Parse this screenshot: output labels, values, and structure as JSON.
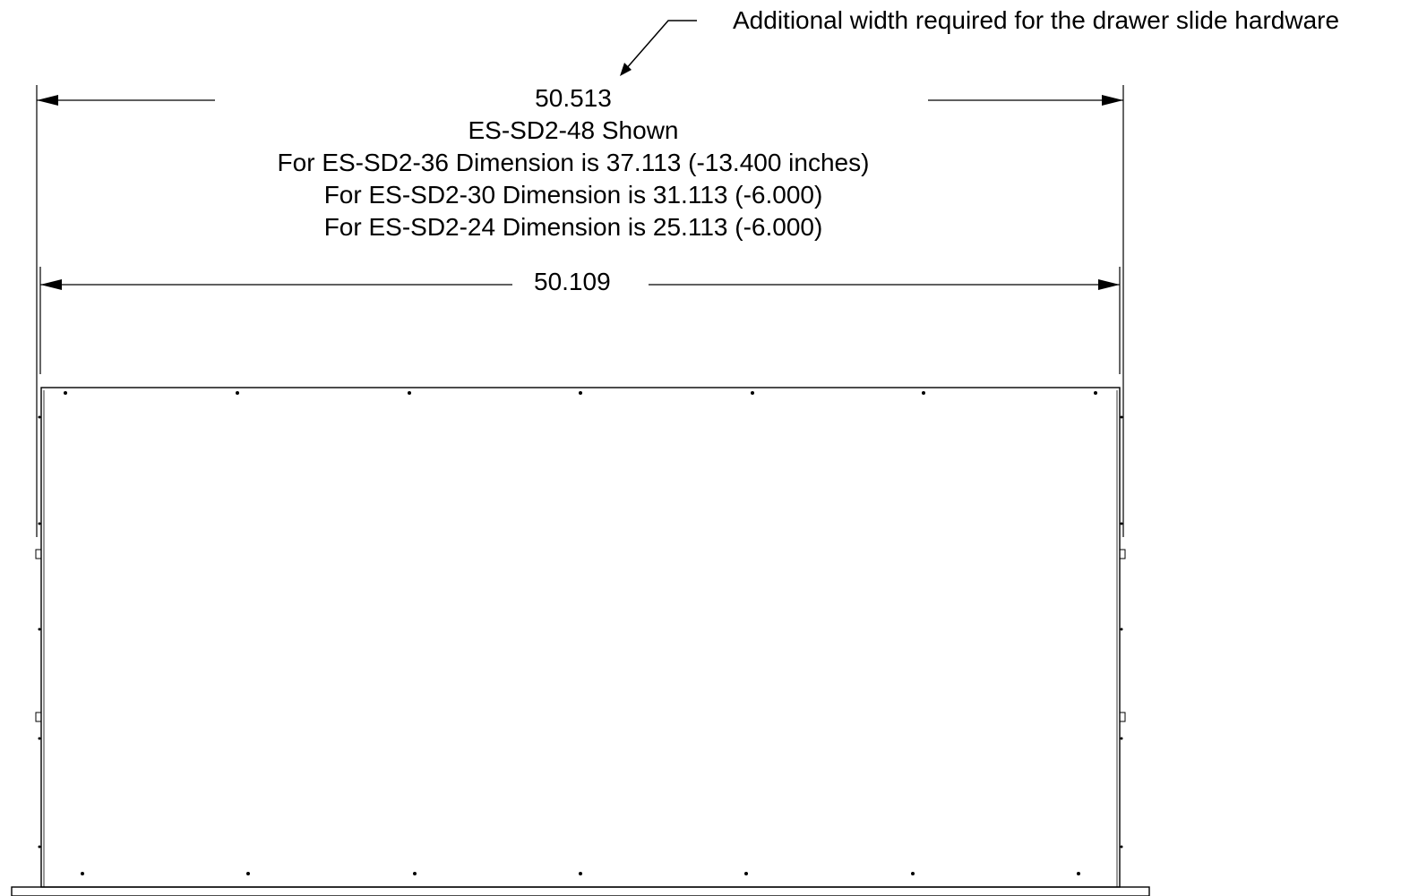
{
  "note": "Additional width required for the drawer slide hardware",
  "overall_dimension": {
    "value": "50.513",
    "shown": "ES-SD2-48 Shown",
    "variants": [
      "For ES-SD2-36 Dimension is 37.113 (-13.400 inches)",
      "For ES-SD2-30 Dimension is 31.113 (-6.000)",
      "For ES-SD2-24 Dimension is 25.113 (-6.000)"
    ]
  },
  "inner_dimension": {
    "value": "50.109"
  },
  "colors": {
    "line": "#000000",
    "background": "#ffffff"
  }
}
